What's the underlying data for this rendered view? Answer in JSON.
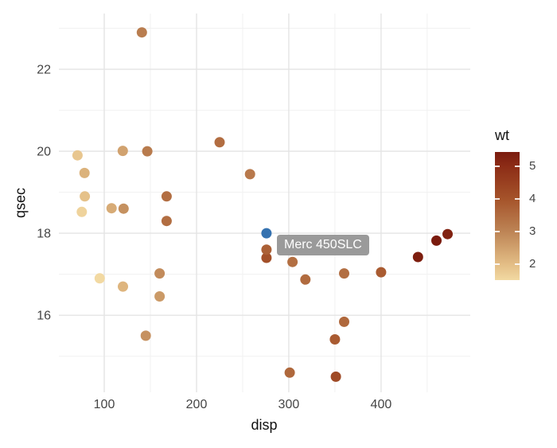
{
  "figure": {
    "background": "#ffffff",
    "tooltip": {
      "label": "Merc 450SLC",
      "background": "#9a9a9a",
      "text_color": "#ffffff"
    }
  },
  "chart_data": {
    "type": "scatter",
    "title": "",
    "xlabel": "disp",
    "ylabel": "qsec",
    "xlim": [
      50.9,
      496.6
    ],
    "ylim": [
      14.12,
      23.36
    ],
    "x_ticks": [
      100,
      200,
      300,
      400
    ],
    "x_minor_ticks": [
      150,
      250,
      350,
      450
    ],
    "y_ticks": [
      16,
      18,
      20,
      22
    ],
    "y_minor_ticks": [
      15,
      17,
      19,
      21,
      23
    ],
    "grid": {
      "major_color": "#e4e4e4",
      "minor_color": "#f1f1f1"
    },
    "tick_label_color": "#454545",
    "axis_title_color": "#111111",
    "point_radius": 6.5,
    "highlight_color": "#3572b0",
    "legend": {
      "title": "wt",
      "position": "right",
      "ticks": [
        2,
        3,
        4,
        5
      ],
      "domain": [
        1.513,
        5.424
      ],
      "gradient_stops": [
        {
          "value": 5.424,
          "color": "#7a1b0e"
        },
        {
          "value": 5.0,
          "color": "#8c2c16"
        },
        {
          "value": 4.0,
          "color": "#a5532a"
        },
        {
          "value": 3.0,
          "color": "#bd8455"
        },
        {
          "value": 2.0,
          "color": "#e3bd85"
        },
        {
          "value": 1.513,
          "color": "#f2d9a2"
        }
      ]
    },
    "points": [
      {
        "x": 160.0,
        "y": 16.46,
        "wt": 2.62
      },
      {
        "x": 160.0,
        "y": 17.02,
        "wt": 2.875
      },
      {
        "x": 108.0,
        "y": 18.61,
        "wt": 2.32
      },
      {
        "x": 258.0,
        "y": 19.44,
        "wt": 3.215
      },
      {
        "x": 360.0,
        "y": 17.02,
        "wt": 3.44
      },
      {
        "x": 225.0,
        "y": 20.22,
        "wt": 3.46
      },
      {
        "x": 360.0,
        "y": 15.84,
        "wt": 3.57
      },
      {
        "x": 146.7,
        "y": 20.0,
        "wt": 3.19
      },
      {
        "x": 140.8,
        "y": 22.9,
        "wt": 3.15
      },
      {
        "x": 167.6,
        "y": 18.3,
        "wt": 3.44
      },
      {
        "x": 167.6,
        "y": 18.9,
        "wt": 3.44
      },
      {
        "x": 275.8,
        "y": 17.4,
        "wt": 4.07
      },
      {
        "x": 275.8,
        "y": 17.6,
        "wt": 3.73
      },
      {
        "x": 275.8,
        "y": 18.0,
        "wt": 3.78,
        "highlighted": true,
        "label": "Merc 450SLC"
      },
      {
        "x": 472.0,
        "y": 17.98,
        "wt": 5.25
      },
      {
        "x": 460.0,
        "y": 17.82,
        "wt": 5.424
      },
      {
        "x": 440.0,
        "y": 17.42,
        "wt": 5.345
      },
      {
        "x": 78.7,
        "y": 19.47,
        "wt": 2.2
      },
      {
        "x": 75.7,
        "y": 18.52,
        "wt": 1.615
      },
      {
        "x": 71.1,
        "y": 19.9,
        "wt": 1.835
      },
      {
        "x": 120.1,
        "y": 20.01,
        "wt": 2.465
      },
      {
        "x": 318.0,
        "y": 16.87,
        "wt": 3.52
      },
      {
        "x": 304.0,
        "y": 17.3,
        "wt": 3.435
      },
      {
        "x": 350.0,
        "y": 15.41,
        "wt": 3.84
      },
      {
        "x": 400.0,
        "y": 17.05,
        "wt": 3.845
      },
      {
        "x": 79.0,
        "y": 18.9,
        "wt": 1.935
      },
      {
        "x": 120.3,
        "y": 16.7,
        "wt": 2.14
      },
      {
        "x": 95.1,
        "y": 16.9,
        "wt": 1.513
      },
      {
        "x": 351.0,
        "y": 14.5,
        "wt": 4.222
      },
      {
        "x": 145.0,
        "y": 15.5,
        "wt": 2.77
      },
      {
        "x": 301.0,
        "y": 14.6,
        "wt": 3.57
      },
      {
        "x": 121.0,
        "y": 18.6,
        "wt": 2.78
      }
    ]
  }
}
